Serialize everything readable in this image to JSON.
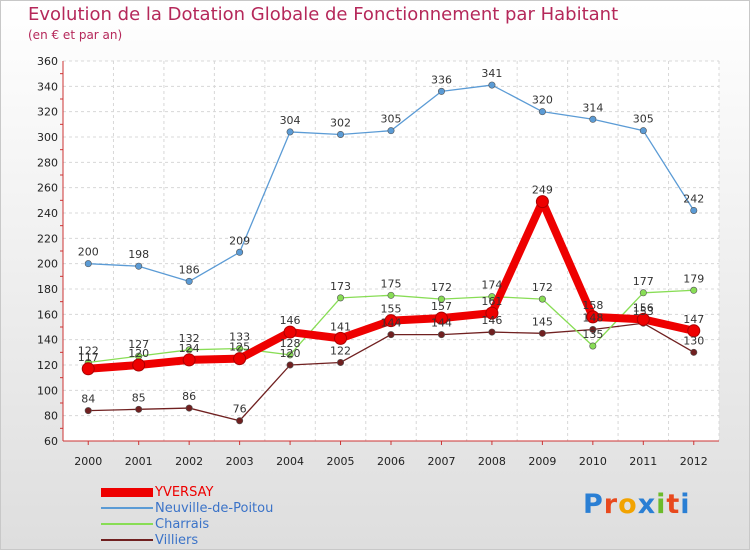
{
  "header": {
    "title": "Evolution de la Dotation Globale de Fonctionnement par Habitant",
    "subtitle": "(en € et par an)"
  },
  "chart_data": {
    "type": "line",
    "title": "Evolution de la Dotation Globale de Fonctionnement par Habitant",
    "subtitle": "(en € et par an)",
    "categories": [
      "2000",
      "2001",
      "2002",
      "2003",
      "2004",
      "2005",
      "2006",
      "2007",
      "2008",
      "2009",
      "2010",
      "2011",
      "2012"
    ],
    "ylim": [
      60,
      360
    ],
    "yticks": [
      60,
      80,
      100,
      120,
      140,
      160,
      180,
      200,
      220,
      240,
      260,
      280,
      300,
      320,
      340,
      360
    ],
    "grid": true,
    "legend_position": "bottom-left",
    "series": [
      {
        "name": "YVERSAY",
        "color": "#ee0000",
        "values": [
          117,
          120,
          124,
          125,
          146,
          141,
          155,
          157,
          161,
          249,
          158,
          156,
          147
        ],
        "labels": [
          "117",
          "120",
          "124",
          "125",
          "146",
          "141",
          "155",
          "157",
          "161",
          "249",
          "158",
          "156",
          "147"
        ]
      },
      {
        "name": "Neuville-de-Poitou",
        "color": "#5b9bd5",
        "values": [
          200,
          198,
          186,
          209,
          304,
          302,
          305,
          336,
          341,
          320,
          314,
          305,
          242
        ],
        "labels": [
          "200",
          "198",
          "186",
          "209",
          "304",
          "302",
          "305",
          "336",
          "341",
          "320",
          "314",
          "305",
          "242"
        ]
      },
      {
        "name": "Charrais",
        "color": "#88dd55",
        "values": [
          122,
          127,
          132,
          133,
          128,
          173,
          175,
          172,
          174,
          172,
          135,
          177,
          179
        ],
        "labels": [
          "122",
          "127",
          "132",
          "133",
          "128",
          "173",
          "175",
          "172",
          "174",
          "172",
          "135",
          "177",
          "179"
        ]
      },
      {
        "name": "Villiers",
        "color": "#702020",
        "values": [
          84,
          85,
          86,
          76,
          120,
          122,
          144,
          144,
          146,
          145,
          148,
          153,
          130
        ],
        "labels": [
          "84",
          "85",
          "86",
          "76",
          "120",
          "122",
          "144",
          "144",
          "146",
          "145",
          "148",
          "153",
          "130"
        ]
      }
    ]
  },
  "logo": {
    "text": "Proxiti"
  }
}
